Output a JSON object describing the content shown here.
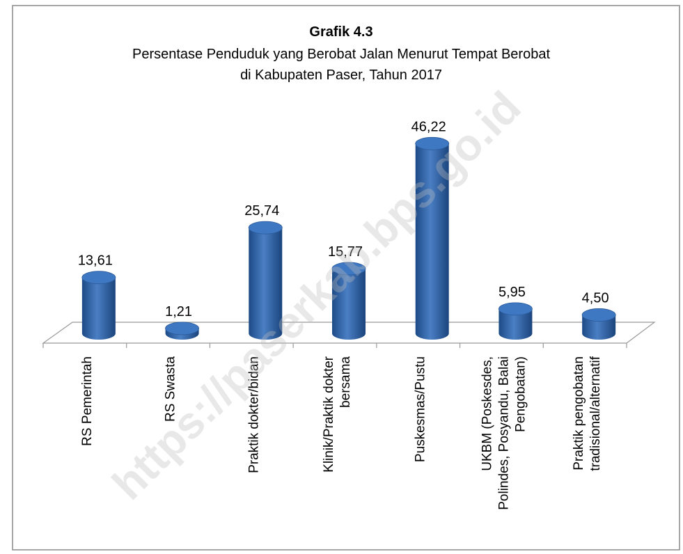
{
  "chart_data": {
    "type": "bar",
    "title": "Grafik 4.3",
    "subtitle": [
      "Persentase Penduduk yang Berobat Jalan Menurut Tempat Berobat",
      "di Kabupaten Paser, Tahun 2017"
    ],
    "categories": [
      [
        "RS Pemerintah"
      ],
      [
        "RS Swasta"
      ],
      [
        "Praktik dokter/bidan"
      ],
      [
        "Klinik/Praktik dokter",
        "bersama"
      ],
      [
        "Puskesmas/Pustu"
      ],
      [
        "UKBM (Poskesdes,",
        "Polindes, Posyandu, Balai",
        "Pengobatan)"
      ],
      [
        "Praktik pengobatan",
        "tradisional/alternatif"
      ]
    ],
    "values": [
      13.61,
      1.21,
      25.74,
      15.77,
      46.22,
      5.95,
      4.5
    ],
    "value_labels": [
      "13,61",
      "1,21",
      "25,74",
      "15,77",
      "46,22",
      "5,95",
      "4,50"
    ],
    "color": "#3a6fb5",
    "watermark": "https://paserkab.bps.go.id"
  }
}
